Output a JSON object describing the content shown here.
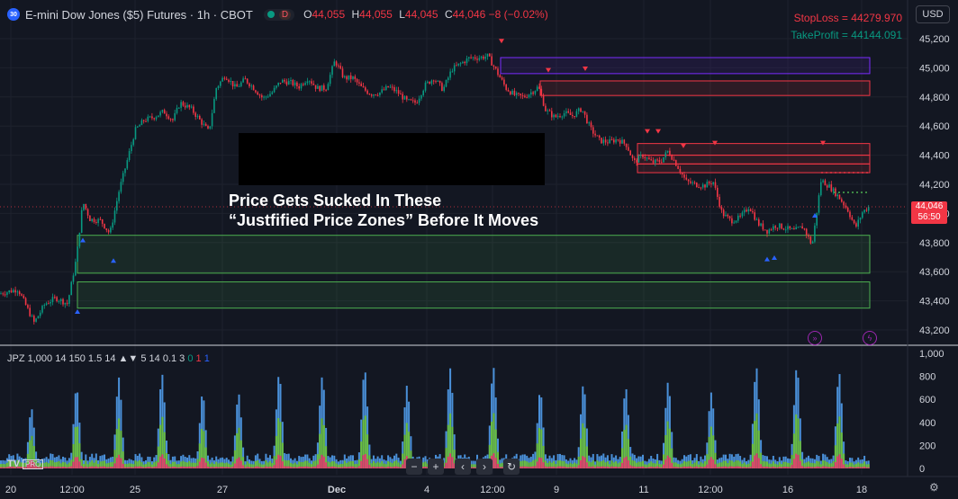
{
  "header": {
    "symbol_icon": "30",
    "title": "E-mini Dow Jones ($5) Futures · 1h · CBOT",
    "badge": "D",
    "ohlc": [
      {
        "k": "O",
        "v": "44,055"
      },
      {
        "k": "H",
        "v": "44,055"
      },
      {
        "k": "L",
        "v": "44,045"
      },
      {
        "k": "C",
        "v": "44,046"
      },
      {
        "k": "",
        "v": "−8 (−0.02%)"
      }
    ]
  },
  "currency": "USD",
  "stoploss": "StopLoss = 44279.970",
  "takeprofit": "TakeProfit = 44144.091",
  "annotation": {
    "line1": "Price Gets Sucked In These",
    "line2": "“Justfified Price Zones” Before It Moves"
  },
  "last_price": {
    "value": "44,046",
    "countdown": "56:50"
  },
  "indicator": {
    "name": "JPZ 1,000 14 150 1.5 14 ▲▼ 5 14 0.1 3",
    "v1": "0",
    "v2": "1",
    "v3": "1"
  },
  "tv_logo": "TV",
  "tv_pro": "PRO",
  "nav": [
    "−",
    "+",
    "‹",
    "›",
    "↻"
  ],
  "colors": {
    "up": "#089981",
    "down": "#f23645",
    "bg": "#131722",
    "grid": "#1e222d",
    "zone_red": "#f23645",
    "zone_green": "#4caf50",
    "zone_purple": "#7b2cff"
  },
  "chart_data": {
    "type": "line",
    "price_axis": {
      "min": 43100,
      "max": 45300,
      "ticks": [
        45200,
        45000,
        44800,
        44600,
        44400,
        44200,
        44000,
        43800,
        43600,
        43400,
        43200
      ]
    },
    "price_tick_labels": [
      "45,200",
      "45,000",
      "44,800",
      "44,600",
      "44,400",
      "44,200",
      "44,000",
      "43,800",
      "43,600",
      "43,400",
      "43,200"
    ],
    "volume_axis": {
      "min": 0,
      "max": 1000,
      "ticks": [
        1000,
        800,
        600,
        400,
        200,
        0
      ]
    },
    "volume_tick_labels": [
      "1,000",
      "800",
      "600",
      "400",
      "200",
      "0"
    ],
    "x_tick_labels": [
      "20",
      "12:00",
      "25",
      "27",
      "Dec",
      "4",
      "12:00",
      "9",
      "11",
      "12:00",
      "16",
      "18"
    ],
    "close_path": [
      [
        0,
        43450
      ],
      [
        20,
        43480
      ],
      [
        38,
        43250
      ],
      [
        50,
        43380
      ],
      [
        62,
        43420
      ],
      [
        75,
        43380
      ],
      [
        85,
        43700
      ],
      [
        92,
        44080
      ],
      [
        100,
        43960
      ],
      [
        112,
        43950
      ],
      [
        122,
        43860
      ],
      [
        132,
        44150
      ],
      [
        142,
        44380
      ],
      [
        150,
        44570
      ],
      [
        160,
        44640
      ],
      [
        170,
        44660
      ],
      [
        182,
        44700
      ],
      [
        192,
        44640
      ],
      [
        200,
        44760
      ],
      [
        212,
        44720
      ],
      [
        222,
        44640
      ],
      [
        232,
        44560
      ],
      [
        240,
        44860
      ],
      [
        250,
        44950
      ],
      [
        262,
        44860
      ],
      [
        272,
        44920
      ],
      [
        282,
        44860
      ],
      [
        292,
        44790
      ],
      [
        302,
        44830
      ],
      [
        312,
        44910
      ],
      [
        322,
        44900
      ],
      [
        332,
        44870
      ],
      [
        342,
        44930
      ],
      [
        352,
        44860
      ],
      [
        362,
        44860
      ],
      [
        372,
        45050
      ],
      [
        382,
        44930
      ],
      [
        392,
        44930
      ],
      [
        402,
        44860
      ],
      [
        412,
        44820
      ],
      [
        422,
        44830
      ],
      [
        432,
        44870
      ],
      [
        442,
        44830
      ],
      [
        452,
        44770
      ],
      [
        462,
        44760
      ],
      [
        472,
        44880
      ],
      [
        482,
        44930
      ],
      [
        492,
        44850
      ],
      [
        502,
        44990
      ],
      [
        512,
        45030
      ],
      [
        522,
        45070
      ],
      [
        532,
        45070
      ],
      [
        542,
        45080
      ],
      [
        552,
        44970
      ],
      [
        562,
        44860
      ],
      [
        572,
        44810
      ],
      [
        582,
        44800
      ],
      [
        592,
        44840
      ],
      [
        598,
        44870
      ],
      [
        606,
        44710
      ],
      [
        616,
        44660
      ],
      [
        626,
        44690
      ],
      [
        636,
        44670
      ],
      [
        646,
        44720
      ],
      [
        656,
        44580
      ],
      [
        666,
        44500
      ],
      [
        676,
        44490
      ],
      [
        686,
        44510
      ],
      [
        696,
        44470
      ],
      [
        704,
        44350
      ],
      [
        714,
        44400
      ],
      [
        724,
        44350
      ],
      [
        734,
        44360
      ],
      [
        742,
        44430
      ],
      [
        752,
        44330
      ],
      [
        762,
        44220
      ],
      [
        772,
        44200
      ],
      [
        782,
        44190
      ],
      [
        792,
        44220
      ],
      [
        802,
        44000
      ],
      [
        812,
        43950
      ],
      [
        822,
        43970
      ],
      [
        832,
        44050
      ],
      [
        842,
        43930
      ],
      [
        852,
        43880
      ],
      [
        862,
        43920
      ],
      [
        872,
        43900
      ],
      [
        882,
        43880
      ],
      [
        892,
        43910
      ],
      [
        902,
        43780
      ],
      [
        912,
        44230
      ],
      [
        922,
        44180
      ],
      [
        932,
        44110
      ],
      [
        942,
        44020
      ],
      [
        950,
        43900
      ],
      [
        958,
        44010
      ],
      [
        966,
        44050
      ]
    ],
    "zones": [
      {
        "color": "purple",
        "y_low": 44960,
        "y_high": 45070,
        "x_start": 556,
        "x_end": 966
      },
      {
        "color": "red",
        "y_low": 44810,
        "y_high": 44910,
        "x_start": 600,
        "x_end": 966
      },
      {
        "color": "red",
        "y_low": 44400,
        "y_high": 44480,
        "x_start": 708,
        "x_end": 966
      },
      {
        "color": "red",
        "y_low": 44340,
        "y_high": 44400,
        "x_start": 708,
        "x_end": 966
      },
      {
        "color": "red",
        "y_low": 44280,
        "y_high": 44340,
        "x_start": 708,
        "x_end": 966
      },
      {
        "color": "green",
        "y_low": 43590,
        "y_high": 43850,
        "x_start": 86,
        "x_end": 966
      },
      {
        "color": "green",
        "y_low": 43350,
        "y_high": 43530,
        "x_start": 86,
        "x_end": 966
      }
    ],
    "stoploss_level": 44279.97,
    "takeprofit_level": 44144.091,
    "last_price": 44046,
    "markers": [
      {
        "type": "down",
        "x": 557,
        "y": 45180
      },
      {
        "type": "down",
        "x": 609,
        "y": 44980
      },
      {
        "type": "down",
        "x": 650,
        "y": 44990
      },
      {
        "type": "down",
        "x": 719,
        "y": 44560
      },
      {
        "type": "down",
        "x": 731,
        "y": 44560
      },
      {
        "type": "down",
        "x": 759,
        "y": 44460
      },
      {
        "type": "down",
        "x": 794,
        "y": 44480
      },
      {
        "type": "down",
        "x": 914,
        "y": 44480
      },
      {
        "type": "up",
        "x": 92,
        "y": 43820
      },
      {
        "type": "up",
        "x": 126,
        "y": 43680
      },
      {
        "type": "up",
        "x": 86,
        "y": 43330
      },
      {
        "type": "up",
        "x": 852,
        "y": 43690
      },
      {
        "type": "up",
        "x": 860,
        "y": 43700
      },
      {
        "type": "up",
        "x": 905,
        "y": 43990
      }
    ],
    "volume_peaks": [
      35,
      85,
      132,
      180,
      225,
      265,
      310,
      358,
      405,
      452,
      500,
      548,
      600,
      648,
      695,
      742,
      790,
      840,
      885,
      932
    ],
    "volume_peak_values": [
      520,
      700,
      790,
      820,
      650,
      650,
      820,
      800,
      860,
      720,
      870,
      880,
      670,
      730,
      700,
      750,
      660,
      880,
      880,
      830
    ]
  }
}
